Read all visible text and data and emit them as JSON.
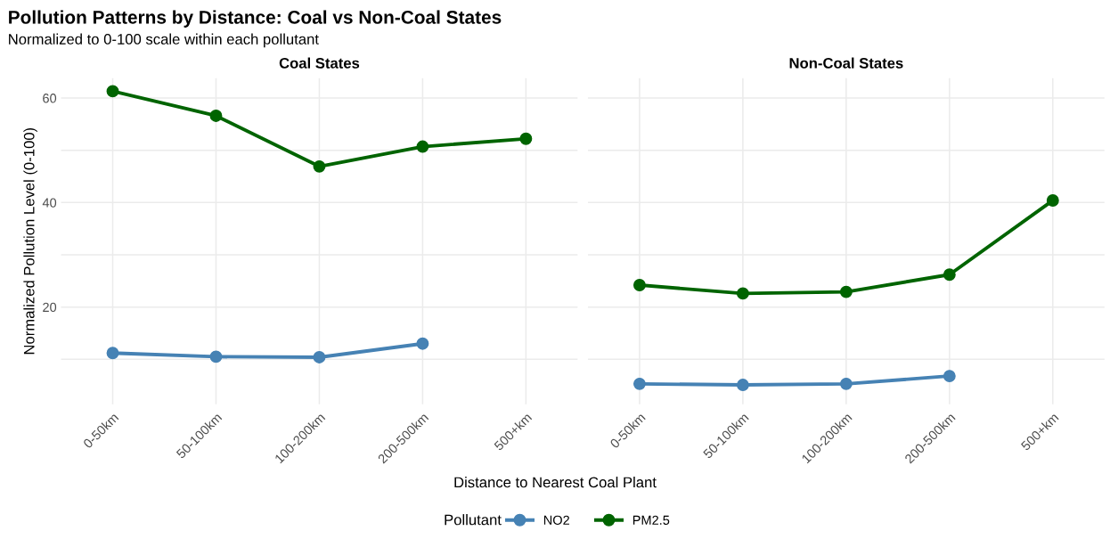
{
  "chart_data": [
    {
      "type": "line",
      "title": "Coal States",
      "annotations": [
        "Pollution Patterns by Distance: Coal vs Non-Coal States",
        "Normalized to 0-100 scale within each pollutant"
      ],
      "xlabel": "Distance to Nearest Coal Plant",
      "ylabel": "Normalized Pollution Level (0-100)",
      "legend_title": "Pollutant",
      "legend": "bottom",
      "grid": true,
      "marker": "circle",
      "line_style": "solid",
      "categories": [
        "0-50km",
        "50-100km",
        "100-200km",
        "200-500km",
        "500+km"
      ],
      "ylim": [
        1.4,
        63.8
      ],
      "yticks": [
        {
          "value": 10,
          "label": null
        },
        20,
        {
          "value": 30,
          "label": null
        },
        40,
        {
          "value": 50,
          "label": null
        },
        60
      ],
      "series": [
        {
          "name": "NO2",
          "color": "#4682b4",
          "values": [
            11.2,
            10.5,
            10.4,
            13.0,
            null
          ]
        },
        {
          "name": "PM2.5",
          "color": "#006400",
          "values": [
            61.3,
            56.6,
            46.9,
            50.7,
            52.2
          ]
        }
      ]
    },
    {
      "type": "line",
      "title": "Non-Coal States",
      "tick_labels": "x",
      "grid": true,
      "marker": "circle",
      "line_style": "solid",
      "categories": [
        "0-50km",
        "50-100km",
        "100-200km",
        "200-500km",
        "500+km"
      ],
      "ylim": [
        1.4,
        63.8
      ],
      "yticks": [
        {
          "value": 10,
          "label": null
        },
        20,
        {
          "value": 30,
          "label": null
        },
        40,
        {
          "value": 50,
          "label": null
        },
        60
      ],
      "series": [
        {
          "color": "#4682b4",
          "values": [
            5.3,
            5.1,
            5.3,
            6.8,
            null
          ]
        },
        {
          "color": "#006400",
          "values": [
            24.2,
            22.6,
            22.9,
            26.2,
            40.4
          ]
        }
      ]
    }
  ]
}
